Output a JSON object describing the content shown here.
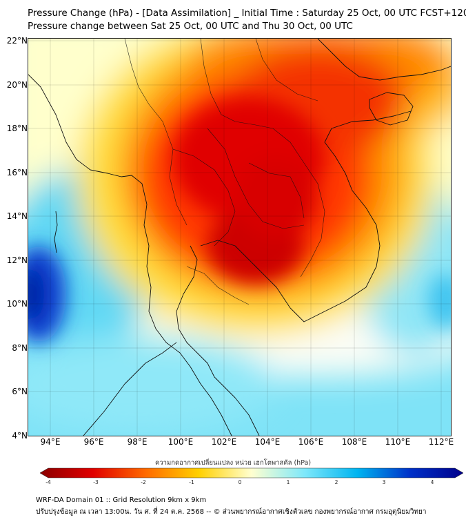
{
  "title": {
    "line1": "Pressure Change (hPa) - [Data Assimilation] _ Initial Time : Saturday 25 Oct, 00 UTC FCST+120",
    "line2": "Pressure change between Sat 25 Oct, 00 UTC and Thu 30 Oct, 00 UTC"
  },
  "map": {
    "lat_labels": [
      "22°N",
      "20°N",
      "18°N",
      "16°N",
      "14°N",
      "12°N",
      "10°N",
      "8°N",
      "6°N",
      "4°N"
    ],
    "lon_labels": [
      "94°E",
      "96°E",
      "98°E",
      "100°E",
      "102°E",
      "104°E",
      "106°E",
      "108°E",
      "110°E",
      "112°E"
    ],
    "field": "pressure change",
    "gridlines": true
  },
  "colorbar": {
    "label": "ความกดอากาศเปลี่ยนแปลง หน่วย เฮกโตพาสคัล (hPa)",
    "ticks": [
      "-4",
      "-3",
      "-2",
      "-1",
      "0",
      "1",
      "2",
      "3",
      "4"
    ],
    "range": [
      -4,
      4
    ],
    "colors": [
      "#8b0000",
      "#e00000",
      "#ff6a00",
      "#ffd000",
      "#ffffd0",
      "#7ee8fa",
      "#00b4f0",
      "#0030c8",
      "#00008b"
    ]
  },
  "footer": {
    "line1": "WRF-DA Domain 01 :: Grid Resolution 9km x 9km",
    "line2": "ปรับปรุงข้อมูล ณ เวลา 13:00น. วัน ศ. ที่ 24 ต.ค. 2568 -- © ส่วนพยากรณ์อากาศเชิงตัวเลข กองพยากรณ์อากาศ กรมอุตุนิยมวิทยา"
  }
}
